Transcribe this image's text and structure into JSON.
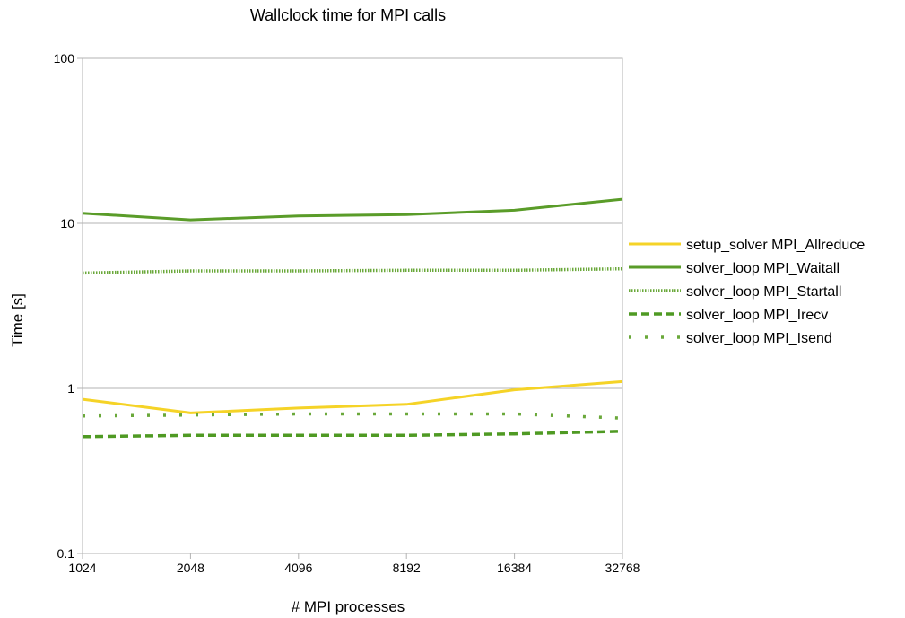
{
  "chart_data": {
    "type": "line",
    "title": "Wallclock time for MPI calls",
    "xlabel": "# MPI processes",
    "ylabel": "Time [s]",
    "y_scale": "log",
    "ylim": [
      0.1,
      100
    ],
    "y_ticks": [
      "0.1",
      "1",
      "10",
      "100"
    ],
    "grid": "horizontal major gridlines",
    "legend_position": "right",
    "categories": [
      "1024",
      "2048",
      "4096",
      "8192",
      "16384",
      "32768"
    ],
    "series": [
      {
        "name": "setup_solver MPI_Allreduce",
        "color": "#f5d327",
        "style": "solid",
        "values": [
          0.86,
          0.71,
          0.76,
          0.8,
          0.98,
          1.1
        ]
      },
      {
        "name": "solver_loop MPI_Waitall",
        "color": "#5a9c29",
        "style": "solid",
        "values": [
          11.5,
          10.5,
          11.1,
          11.3,
          12.0,
          14.0
        ]
      },
      {
        "name": "solver_loop MPI_Startall",
        "color": "#6aa83a",
        "style": "fine-dotted",
        "values": [
          5.0,
          5.15,
          5.15,
          5.2,
          5.2,
          5.3
        ]
      },
      {
        "name": "solver_loop MPI_Irecv",
        "color": "#4f9a23",
        "style": "dashed",
        "values": [
          0.51,
          0.52,
          0.52,
          0.52,
          0.53,
          0.55
        ]
      },
      {
        "name": "solver_loop MPI_Isend",
        "color": "#6aa83a",
        "style": "sparse-dotted",
        "values": [
          0.68,
          0.69,
          0.7,
          0.7,
          0.7,
          0.66
        ]
      }
    ]
  }
}
